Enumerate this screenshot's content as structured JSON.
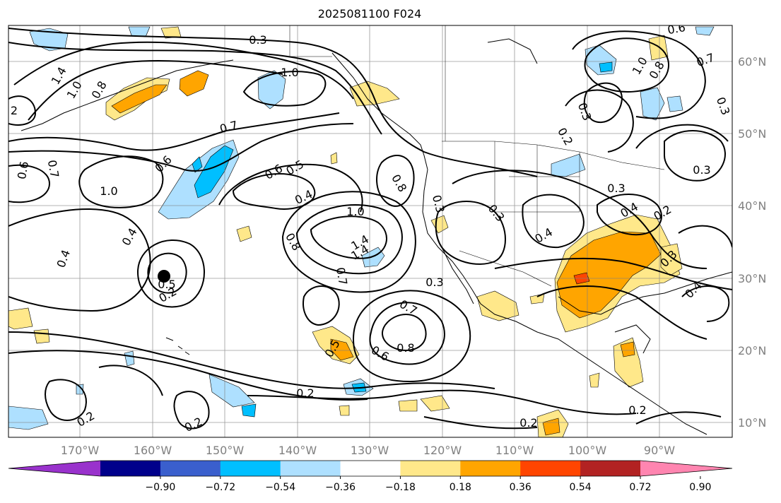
{
  "title": "2025081100 F024",
  "map": {
    "lat_labels": [
      "60°N",
      "50°N",
      "40°N",
      "30°N",
      "20°N",
      "10°N"
    ],
    "lon_labels": [
      "170°W",
      "160°W",
      "150°W",
      "140°W",
      "130°W",
      "120°W",
      "110°W",
      "100°W",
      "90°W"
    ],
    "contour_labels": [
      "0.3",
      "1.0",
      "1.4",
      "1.0",
      "0.8",
      "2",
      "0.7",
      "0.6",
      "0.7",
      "1.0",
      "0.6",
      "0.5",
      "0.4",
      "0.6",
      "0.4",
      "0.5",
      "0.2",
      "0.4",
      "1.0",
      "0.8",
      "1.4",
      "1.4",
      "0.7",
      "0.8",
      "0.3",
      "0.3",
      "0.7",
      "0.8",
      "0.6",
      "0.5",
      "0.2",
      "0.2",
      "0.2",
      "0.3",
      "0.4",
      "0.3",
      "0.2",
      "0.4",
      "0.2",
      "0.2",
      "0.3",
      "0.4",
      "0.3",
      "0.7",
      "0.8",
      "1.0",
      "0.6",
      "0.3",
      "0.2",
      "0.3"
    ],
    "colors": {
      "contour": "#000000",
      "neg_light": "#aee0ff",
      "neg_mid": "#00bfff",
      "pos_light": "#ffe88a",
      "pos_mid": "#ffa500",
      "pos_strong": "#ff4500",
      "grid": "#808080"
    },
    "marker": "black-circle"
  },
  "colorbar": {
    "tick_labels": [
      "−0.90",
      "−0.72",
      "−0.54",
      "−0.36",
      "−0.18",
      "0.18",
      "0.36",
      "0.54",
      "0.72",
      "0.90"
    ],
    "colors": [
      "#9932cc",
      "#00008b",
      "#3a5fcd",
      "#00bfff",
      "#aee0ff",
      "#ffffff",
      "#ffe88a",
      "#ffa500",
      "#ff4500",
      "#b22222",
      "#ff85b0"
    ]
  }
}
